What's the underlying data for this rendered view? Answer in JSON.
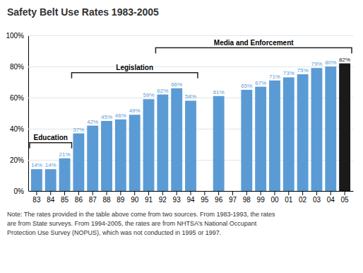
{
  "chart_data": {
    "type": "bar",
    "title": "Safety Belt Use Rates 1983-2005",
    "categories": [
      "83",
      "84",
      "85",
      "86",
      "87",
      "88",
      "89",
      "90",
      "91",
      "92",
      "93",
      "94",
      "95",
      "96",
      "97",
      "98",
      "99",
      "00",
      "01",
      "02",
      "03",
      "04",
      "05"
    ],
    "values": [
      14,
      14,
      21,
      37,
      42,
      45,
      46,
      49,
      59,
      62,
      66,
      58,
      null,
      61,
      null,
      65,
      67,
      71,
      73,
      75,
      79,
      80,
      82
    ],
    "value_labels": [
      "14%",
      "14%",
      "21%",
      "37%",
      "42%",
      "45%",
      "46%",
      "49%",
      "59%",
      "62%",
      "66%",
      "58%",
      null,
      "61%",
      null,
      "65%",
      "67%",
      "71%",
      "73%",
      "75%",
      "79%",
      "80%",
      "82%"
    ],
    "data_labels": true,
    "colors": [
      "#5b9bd5",
      "#5b9bd5",
      "#5b9bd5",
      "#5b9bd5",
      "#5b9bd5",
      "#5b9bd5",
      "#5b9bd5",
      "#5b9bd5",
      "#5b9bd5",
      "#5b9bd5",
      "#5b9bd5",
      "#5b9bd5",
      null,
      "#5b9bd5",
      null,
      "#5b9bd5",
      "#5b9bd5",
      "#5b9bd5",
      "#5b9bd5",
      "#5b9bd5",
      "#5b9bd5",
      "#5b9bd5",
      "#1a1a1a"
    ],
    "ylim": [
      0,
      100
    ],
    "yticks": [
      {
        "value": 0,
        "label": "0%"
      },
      {
        "value": 20,
        "label": "20%"
      },
      {
        "value": 40,
        "label": "40%"
      },
      {
        "value": 60,
        "label": "60%"
      },
      {
        "value": 80,
        "label": "80%"
      },
      {
        "value": 100,
        "label": "100%"
      }
    ],
    "grid": true,
    "annotations": [
      {
        "text": "Education",
        "from": "83",
        "to": "85"
      },
      {
        "text": "Legislation",
        "from": "86",
        "to": "94"
      },
      {
        "text": "Media and Enforcement",
        "from": "92",
        "to": "05"
      }
    ],
    "note": "Note: The rates provided in the table above come from two sources. From 1983-1993, the rates\nare from State surveys. From 1994-2005, the rates are from NHTSA’s National Occupant\nProtection Use Survey (NOPUS), which was not conducted in 1995 or 1997."
  }
}
